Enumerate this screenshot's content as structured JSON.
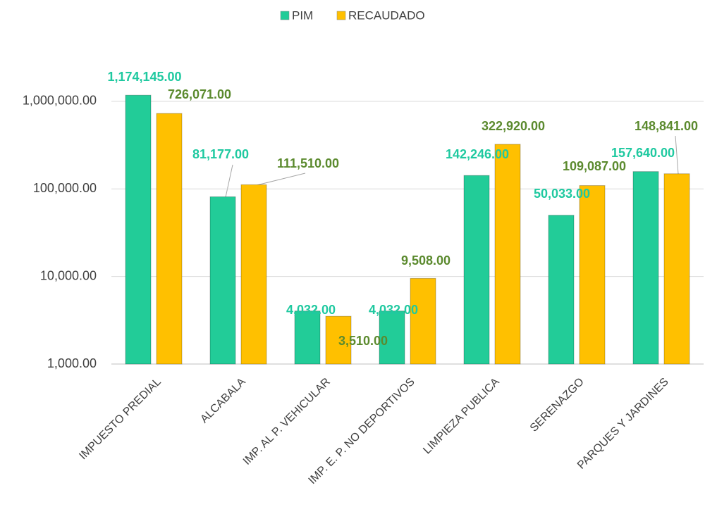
{
  "chart_data": {
    "type": "bar",
    "categories": [
      "IMPUESTO PREDIAL",
      "ALCABALA",
      "IMP. AL P. VEHICULAR",
      "IMP. E. P. NO DEPORTIVOS",
      "LIMPIEZA PUBLICA",
      "SERENAZGO",
      "PARQUES Y JARDINES"
    ],
    "series": [
      {
        "name": "PIM",
        "color": "#22cc98",
        "label_color": "#1fc9a0",
        "values": [
          1174145,
          81177,
          4032,
          4032,
          142246,
          50033,
          157640
        ],
        "value_labels": [
          "1,174,145.00",
          "81,177.00",
          "4,032.00",
          "4,032.00",
          "142,246.00",
          "50,033.00",
          "157,640.00"
        ]
      },
      {
        "name": "RECAUDADO",
        "color": "#ffc000",
        "label_color": "#5b8a2e",
        "values": [
          726071,
          111510,
          3510,
          9508,
          322920,
          109087,
          148841
        ],
        "value_labels": [
          "726,071.00",
          "111,510.00",
          "3,510.00",
          "9,508.00",
          "322,920.00",
          "109,087.00",
          "148,841.00"
        ]
      }
    ],
    "log_scale": true,
    "ylim": [
      1000,
      10000000
    ],
    "yticks": [
      {
        "value": 1000,
        "label": "1,000.00"
      },
      {
        "value": 10000,
        "label": "10,000.00"
      },
      {
        "value": 100000,
        "label": "100,000.00"
      },
      {
        "value": 1000000,
        "label": "1,000,000.00"
      }
    ],
    "grid": true,
    "legend": "top"
  }
}
